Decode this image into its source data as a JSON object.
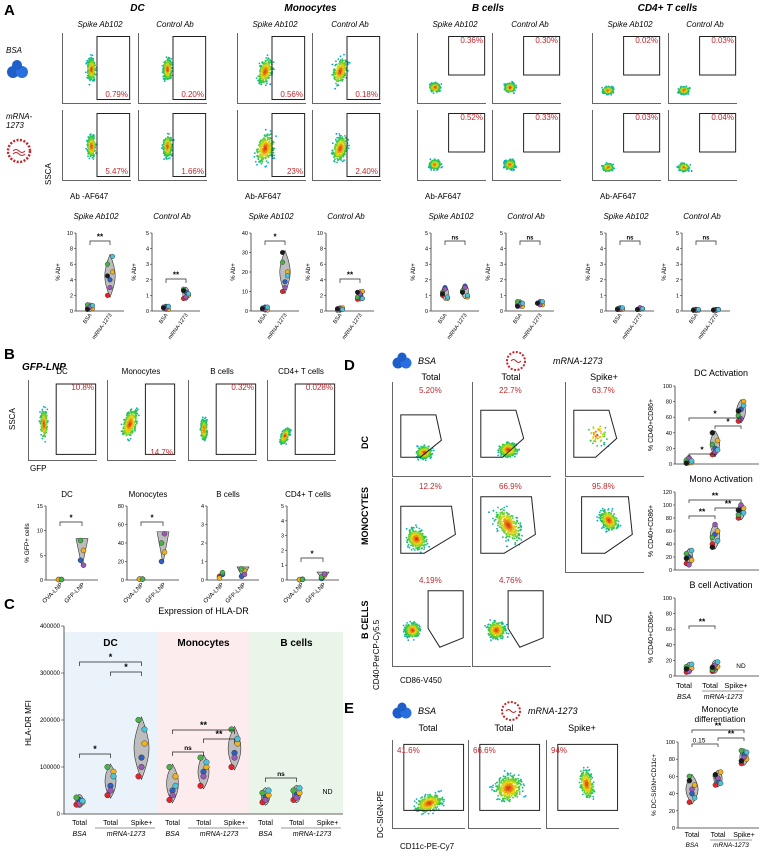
{
  "panels": {
    "A": {
      "letter": "A",
      "groups": [
        "DC",
        "Monocytes",
        "B cells",
        "CD4+ T cells"
      ],
      "antibodies": [
        "Spike Ab102",
        "Control Ab"
      ],
      "row_labels": [
        "BSA",
        "mRNA-1273"
      ],
      "y_axis": "SSCA",
      "x_axis": "Ab -AF647",
      "x_axis_alt": "Ab-AF647",
      "flow_pcts": {
        "bsa": [
          "0.79%",
          "0.20%",
          "0.56%",
          "0.18%",
          "0.36%",
          "0.30%",
          "0.02%",
          "0.03%"
        ],
        "mrna": [
          "5.47%",
          "1.66%",
          "23%",
          "2.40%",
          "0.52%",
          "0.33%",
          "0.03%",
          "0.04%"
        ]
      },
      "violin_ylabel": "% Ab+",
      "violin_xcats": [
        "BSA",
        "mRNA-1273"
      ],
      "sig": [
        "**",
        "**",
        "*",
        "**",
        "ns",
        "ns",
        "ns",
        "ns"
      ],
      "yticks_dc": [
        "0",
        "2",
        "4",
        "6",
        "8",
        "10"
      ],
      "yticks_mono": [
        "0",
        "10",
        "20",
        "30",
        "40"
      ],
      "yticks_b": [
        "0",
        "1",
        "2",
        "3",
        "4",
        "5"
      ]
    },
    "B": {
      "letter": "B",
      "title": "GFP-LNP",
      "groups": [
        "DC",
        "Monocytes",
        "B cells",
        "CD4+ T cells"
      ],
      "pcts": [
        "10.8%",
        "14.7%",
        "0.32%",
        "0.028%"
      ],
      "y_axis": "SSCA",
      "x_axis": "GFP",
      "ylabel": "% GFP+ cells",
      "xcats": [
        "OVA-LNP",
        "GFP-LNP"
      ],
      "sig": [
        "*",
        "*",
        "",
        "*"
      ],
      "yticks_dc": [
        "0",
        "5",
        "10",
        "15"
      ],
      "yticks_mono": [
        "0",
        "20",
        "40",
        "60",
        "80"
      ],
      "yticks_b": [
        "0",
        "1",
        "2",
        "3",
        "4"
      ],
      "yticks_t": [
        "0",
        "1",
        "2",
        "3",
        "4",
        "5"
      ]
    },
    "C": {
      "letter": "C",
      "title": "Expression of HLA-DR",
      "ylabel": "HLA-DR MFI",
      "groups": [
        "DC",
        "Monocytes",
        "B cells"
      ],
      "xcats": [
        "Total",
        "Total",
        "Spike+",
        "Total",
        "Total",
        "Spike+",
        "Total",
        "Total",
        "Spike+"
      ],
      "conds": [
        "BSA",
        "mRNA-1273",
        "BSA",
        "mRNA-1273",
        "BSA",
        "mRNA-1273"
      ],
      "yticks": [
        "0",
        "100000",
        "200000",
        "300000",
        "400000"
      ],
      "nd": "ND",
      "sig": [
        "*",
        "*",
        "*",
        "ns",
        "**",
        "**",
        "ns"
      ]
    },
    "D": {
      "letter": "D",
      "conds": [
        "BSA",
        "mRNA-1273"
      ],
      "cols": [
        "Total",
        "Total",
        "Spike+"
      ],
      "rows": [
        "DC",
        "MONOCYTES",
        "B CELLS"
      ],
      "pcts": [
        "5.20%",
        "22.7%",
        "63.7%",
        "12.2%",
        "66.9%",
        "95.8%",
        "4.19%",
        "4.76%"
      ],
      "nd": "ND",
      "y_axis": "CD40-PerCP-Cy5.5",
      "x_axis": "CD86-V450",
      "chart_titles": [
        "DC Activation",
        "Mono Activation",
        "B cell Activation"
      ],
      "ylabel": "% CD40+CD86+",
      "yticks_dc": [
        "0",
        "20",
        "40",
        "60",
        "80",
        "100"
      ],
      "yticks_mono": [
        "0",
        "20",
        "40",
        "60",
        "80",
        "100",
        "120"
      ],
      "yticks_b": [
        "0",
        "20",
        "40",
        "60",
        "80",
        "100"
      ],
      "xcats": [
        "Total",
        "Total",
        "Spike+"
      ],
      "xconds": [
        "BSA",
        "mRNA-1273"
      ],
      "sig": [
        "*",
        "*",
        "*",
        "**",
        "**",
        "**",
        "**"
      ]
    },
    "E": {
      "letter": "E",
      "conds": [
        "BSA",
        "mRNA-1273"
      ],
      "cols": [
        "Total",
        "Total",
        "Spike+"
      ],
      "pcts": [
        "41.6%",
        "66.6%",
        "94%"
      ],
      "y_axis": "DC-SIGN-PE",
      "x_axis": "CD11c-PE-Cy7",
      "chart_title": "Monocyte differentiation",
      "ylabel": "% DC-SIGN+CD11c+",
      "yticks": [
        "0",
        "20",
        "40",
        "60",
        "80",
        "100"
      ],
      "xcats": [
        "Total",
        "Total",
        "Spike+"
      ],
      "xconds": [
        "BSA",
        "mRNA-1273"
      ],
      "sig": [
        "**",
        "0.15",
        "**"
      ]
    }
  },
  "colors": {
    "pct_red": "#c0282d",
    "panel_c_dc_bg": "#eaf3fa",
    "panel_c_mono_bg": "#fdecee",
    "panel_c_b_bg": "#eaf5ea",
    "violin_fill": "#bdbdbd",
    "dot_colors": [
      "#e8222a",
      "#2f5fbf",
      "#f2b21c",
      "#49b24a",
      "#9b59b6",
      "#4cc3d9",
      "#1a1a1a",
      "#f08cc0"
    ]
  },
  "chart_data": [
    {
      "type": "scatter",
      "title": "DC Activation",
      "xlabel": "",
      "ylabel": "% CD40+CD86+",
      "categories": [
        "Total BSA",
        "Total mRNA-1273",
        "Spike+ mRNA-1273"
      ],
      "series": [
        {
          "values": [
            [
              3,
              6,
              2,
              5,
              8,
              4,
              1
            ],
            [
              12,
              20,
              30,
              25,
              15,
              18,
              40
            ],
            [
              55,
              70,
              80,
              62,
              58,
              75,
              68
            ]
          ]
        }
      ],
      "ylim": [
        0,
        100
      ]
    },
    {
      "type": "scatter",
      "title": "Mono Activation",
      "xlabel": "",
      "ylabel": "% CD40+CD86+",
      "categories": [
        "Total BSA",
        "Total mRNA-1273",
        "Spike+ mRNA-1273"
      ],
      "series": [
        {
          "values": [
            [
              10,
              20,
              15,
              25,
              8,
              30,
              18
            ],
            [
              40,
              55,
              60,
              50,
              70,
              45,
              35
            ],
            [
              80,
              90,
              95,
              85,
              100,
              88,
              92
            ]
          ]
        }
      ],
      "ylim": [
        0,
        120
      ]
    },
    {
      "type": "scatter",
      "title": "B cell Activation",
      "xlabel": "",
      "ylabel": "% CD40+CD86+",
      "categories": [
        "Total BSA",
        "Total mRNA-1273"
      ],
      "series": [
        {
          "values": [
            [
              5,
              8,
              10,
              12,
              6,
              15,
              9
            ],
            [
              6,
              10,
              12,
              8,
              14,
              18,
              11
            ]
          ]
        }
      ],
      "ylim": [
        0,
        100
      ]
    },
    {
      "type": "scatter",
      "title": "Monocyte differentiation",
      "xlabel": "",
      "ylabel": "% DC-SIGN+CD11c+",
      "categories": [
        "Total BSA",
        "Total mRNA-1273",
        "Spike+ mRNA-1273"
      ],
      "series": [
        {
          "values": [
            [
              30,
              40,
              50,
              60,
              45,
              35,
              55
            ],
            [
              50,
              55,
              65,
              60,
              58,
              52,
              62
            ],
            [
              75,
              85,
              80,
              90,
              82,
              88,
              78
            ]
          ]
        }
      ],
      "ylim": [
        0,
        100
      ]
    },
    {
      "type": "scatter",
      "title": "Expression of HLA-DR",
      "xlabel": "",
      "ylabel": "HLA-DR MFI",
      "categories": [
        "DC Total BSA",
        "DC Total mRNA-1273",
        "DC Spike+ mRNA-1273",
        "Mono Total BSA",
        "Mono Total mRNA-1273",
        "Mono Spike+ mRNA-1273",
        "B Total BSA",
        "B Total mRNA-1273"
      ],
      "series": [
        {
          "values": [
            [
              20000,
              30000,
              25000,
              35000,
              22000,
              28000
            ],
            [
              40000,
              60000,
              90000,
              100000,
              50000,
              80000
            ],
            [
              80000,
              120000,
              150000,
              200000,
              100000,
              180000
            ],
            [
              30000,
              50000,
              80000,
              100000,
              40000,
              60000
            ],
            [
              60000,
              90000,
              100000,
              120000,
              80000,
              110000
            ],
            [
              100000,
              130000,
              150000,
              180000,
              120000,
              160000
            ],
            [
              25000,
              35000,
              40000,
              45000,
              30000,
              50000
            ],
            [
              30000,
              40000,
              45000,
              50000,
              35000,
              55000
            ]
          ]
        }
      ],
      "ylim": [
        0,
        400000
      ]
    }
  ]
}
